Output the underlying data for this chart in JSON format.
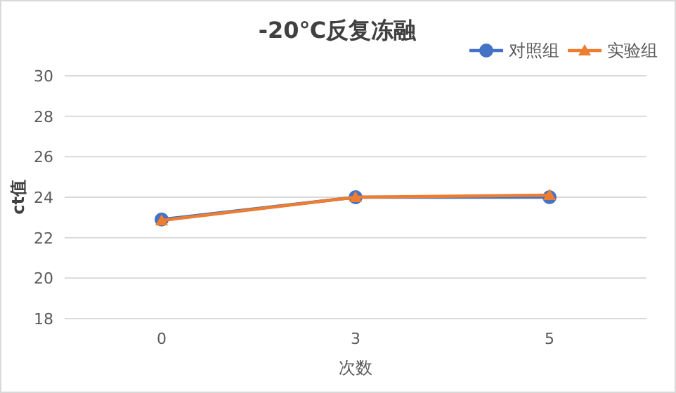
{
  "chart_data": {
    "type": "line",
    "title": "-20℃反复冻融",
    "xlabel": "次数",
    "ylabel": "ct值",
    "categories": [
      "0",
      "3",
      "5"
    ],
    "series": [
      {
        "name": "对照组",
        "color": "#4472c4",
        "marker": "circle",
        "values": [
          22.9,
          24.0,
          24.0
        ]
      },
      {
        "name": "实验组",
        "color": "#ed7d31",
        "marker": "triangle",
        "values": [
          22.85,
          24.0,
          24.1
        ]
      }
    ],
    "ylim": [
      18,
      30
    ],
    "yticks": [
      18,
      20,
      22,
      24,
      26,
      28,
      30
    ],
    "grid": "y",
    "legend": "top right",
    "line_style": "solid"
  }
}
